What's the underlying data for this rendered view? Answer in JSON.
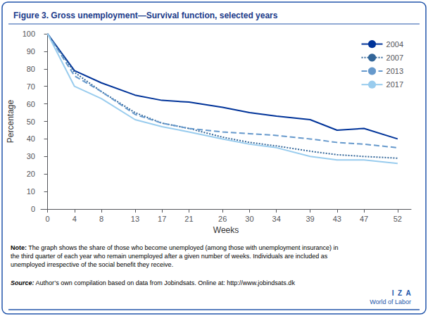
{
  "chart_data": {
    "type": "line",
    "title": "Figure 3. Gross unemployment—Survival function, selected years",
    "x_label": "Weeks",
    "y_label": "Percentage",
    "x": [
      0,
      4,
      8,
      13,
      17,
      21,
      26,
      30,
      34,
      39,
      43,
      47,
      52
    ],
    "xlim": [
      -1,
      54
    ],
    "xticks": [
      0,
      4,
      8,
      13,
      17,
      21,
      26,
      30,
      34,
      39,
      43,
      47,
      52
    ],
    "ylim": [
      0,
      100
    ],
    "yticks": [
      0,
      10,
      20,
      30,
      40,
      50,
      60,
      70,
      80,
      90,
      100
    ],
    "grid": false,
    "legend": "upper right",
    "series": [
      {
        "name": "2004",
        "color": "#003399",
        "line_style": "solid",
        "values": [
          100,
          79,
          72,
          65,
          62,
          61,
          58,
          55,
          53,
          51,
          45,
          46,
          40
        ]
      },
      {
        "name": "2007",
        "color": "#336699",
        "line_style": "dotted",
        "values": [
          100,
          78,
          67,
          55,
          49,
          46,
          41,
          38,
          36,
          33,
          31,
          30,
          29
        ]
      },
      {
        "name": "2013",
        "color": "#6699cc",
        "line_style": "dashed",
        "values": [
          100,
          76,
          67,
          54,
          49,
          46,
          44,
          43,
          42,
          40,
          38,
          37,
          35
        ]
      },
      {
        "name": "2017",
        "color": "#99ccee",
        "line_style": "solid",
        "values": [
          100,
          70,
          63,
          51,
          47,
          44,
          40,
          37,
          35,
          30,
          28,
          28,
          26
        ]
      }
    ],
    "annotations": [
      "Note:",
      " The graph shows the share of those who become unemployed (among those with unemployment insurance) in\nthe third quarter of each year who remain unemployed after a given number of weeks. Individuals are included as\nunemployed irrespective of the social benefit they receive.",
      "Source:",
      " Author’s own compilation based on data from Jobindsats. Online at: http://www.jobindsats.dk",
      "I  Z  A",
      "World of Labor"
    ]
  }
}
